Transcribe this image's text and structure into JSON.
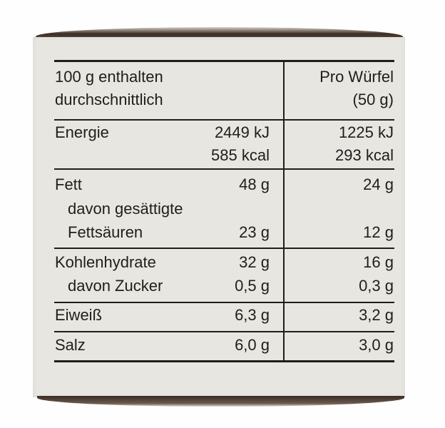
{
  "header": {
    "col1_line1": "100 g enthalten",
    "col1_line2": "durchschnittlich",
    "col2_line1": "Pro Würfel",
    "col2_line2": "(50 g)"
  },
  "rows": [
    {
      "label": "Energie",
      "per100": "2449 kJ",
      "perCube": "1225 kJ",
      "per100_2": "585 kcal",
      "perCube_2": "293 kcal"
    },
    {
      "label": "Fett",
      "per100": "48 g",
      "perCube": "24 g",
      "sub_label_1": "davon gesättigte",
      "sub_label_2": "Fettsäuren",
      "sub_per100": "23 g",
      "sub_perCube": "12 g"
    },
    {
      "label": "Kohlenhydrate",
      "per100": "32 g",
      "perCube": "16 g",
      "sub_label": "davon Zucker",
      "sub_per100": "0,5 g",
      "sub_perCube": "0,3 g"
    },
    {
      "label": "Eiweiß",
      "per100": "6,3 g",
      "perCube": "3,2 g"
    },
    {
      "label": "Salz",
      "per100": "6,0 g",
      "perCube": "3,0 g"
    }
  ]
}
